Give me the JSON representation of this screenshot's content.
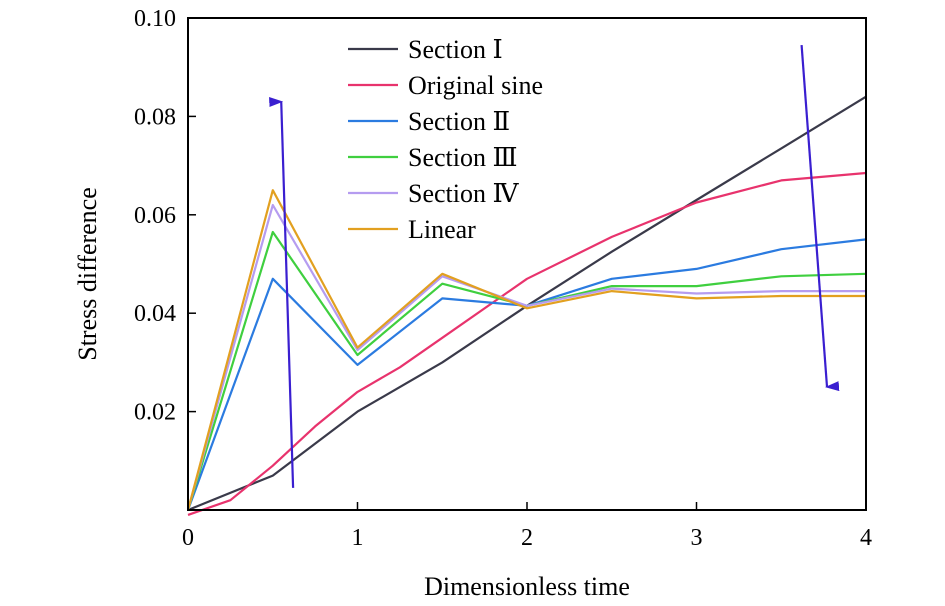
{
  "chart_data": {
    "type": "line",
    "xlabel": "Dimensionless time",
    "ylabel": "Stress difference",
    "xlim": [
      0,
      4
    ],
    "ylim": [
      0,
      0.1
    ],
    "x_ticks": [
      0,
      1,
      2,
      3,
      4
    ],
    "x_tick_labels": [
      "0",
      "1",
      "2",
      "3",
      "4"
    ],
    "y_ticks": [
      0.02,
      0.04,
      0.06,
      0.08,
      0.1
    ],
    "y_tick_labels": [
      "0.02",
      "0.04",
      "0.06",
      "0.08",
      "0.10"
    ],
    "grid": false,
    "legend_position": "top-center",
    "series": [
      {
        "name": "Section Ⅰ",
        "color": "#3a3a4a",
        "x": [
          0,
          0.5,
          1,
          1.5,
          2,
          2.5,
          3,
          3.5,
          4
        ],
        "y": [
          0,
          0.007,
          0.02,
          0.03,
          0.0415,
          0.0525,
          0.063,
          0.0735,
          0.084
        ]
      },
      {
        "name": "Original sine",
        "color": "#e8336d",
        "x": [
          0,
          0.25,
          0.5,
          0.75,
          1,
          1.25,
          1.5,
          2,
          2.5,
          3,
          3.5,
          4
        ],
        "y": [
          -0.001,
          0.002,
          0.009,
          0.017,
          0.024,
          0.029,
          0.035,
          0.047,
          0.0555,
          0.0625,
          0.067,
          0.0685
        ]
      },
      {
        "name": "Section Ⅱ",
        "color": "#2b7be0",
        "x": [
          0,
          0.5,
          1,
          1.5,
          2,
          2.5,
          3,
          3.5,
          4
        ],
        "y": [
          0,
          0.047,
          0.0295,
          0.043,
          0.0415,
          0.047,
          0.049,
          0.053,
          0.055
        ]
      },
      {
        "name": "Section Ⅲ",
        "color": "#3fcf3f",
        "x": [
          0,
          0.5,
          1,
          1.5,
          2,
          2.5,
          3,
          3.5,
          4
        ],
        "y": [
          0,
          0.0565,
          0.0315,
          0.046,
          0.0415,
          0.0455,
          0.0455,
          0.0475,
          0.048
        ]
      },
      {
        "name": "Section Ⅳ",
        "color": "#b59cf0",
        "x": [
          0,
          0.5,
          1,
          1.5,
          2,
          2.5,
          3,
          3.5,
          4
        ],
        "y": [
          0,
          0.062,
          0.0325,
          0.0475,
          0.0415,
          0.045,
          0.044,
          0.0445,
          0.0445
        ]
      },
      {
        "name": "Linear",
        "color": "#e2a020",
        "x": [
          0,
          0.5,
          1,
          1.5,
          2,
          2.5,
          3,
          3.5,
          4
        ],
        "y": [
          0,
          0.065,
          0.033,
          0.048,
          0.041,
          0.0445,
          0.043,
          0.0435,
          0.0435
        ]
      }
    ],
    "annotations": [
      {
        "type": "arrow",
        "direction": "up",
        "color": "#3a1fd0",
        "from": [
          0.62,
          0.0045
        ],
        "to": [
          0.55,
          0.083
        ]
      },
      {
        "type": "arrow",
        "direction": "down",
        "color": "#3a1fd0",
        "from": [
          3.62,
          0.0945
        ],
        "to": [
          3.77,
          0.025
        ]
      }
    ]
  }
}
